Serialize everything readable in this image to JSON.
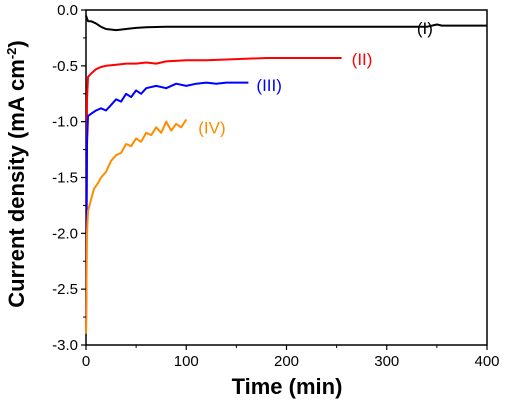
{
  "chart_data": {
    "type": "line",
    "xlabel": "Time (min)",
    "ylabel_main": "Current density (mA cm",
    "ylabel_sup": "-2",
    "ylabel_close": ")",
    "xlim": [
      0,
      400
    ],
    "ylim": [
      -3.0,
      0.0
    ],
    "x_ticks": [
      0,
      100,
      200,
      300,
      400
    ],
    "x_tick_labels": [
      "0",
      "100",
      "200",
      "300",
      "400"
    ],
    "y_ticks": [
      0.0,
      -0.5,
      -1.0,
      -1.5,
      -2.0,
      -2.5,
      -3.0
    ],
    "y_tick_labels": [
      "0.0",
      "-0.5",
      "-1.0",
      "-1.5",
      "-2.0",
      "-2.5",
      "-3.0"
    ],
    "grid": false,
    "series": [
      {
        "name": "(I)",
        "color": "#000000",
        "label_at": [
          330,
          -0.16
        ],
        "points": [
          [
            0,
            -0.05
          ],
          [
            2,
            -0.1
          ],
          [
            5,
            -0.1
          ],
          [
            10,
            -0.12
          ],
          [
            15,
            -0.15
          ],
          [
            20,
            -0.17
          ],
          [
            30,
            -0.18
          ],
          [
            40,
            -0.17
          ],
          [
            50,
            -0.16
          ],
          [
            60,
            -0.155
          ],
          [
            80,
            -0.15
          ],
          [
            100,
            -0.15
          ],
          [
            150,
            -0.15
          ],
          [
            200,
            -0.15
          ],
          [
            250,
            -0.15
          ],
          [
            300,
            -0.15
          ],
          [
            340,
            -0.15
          ],
          [
            350,
            -0.13
          ],
          [
            355,
            -0.14
          ],
          [
            370,
            -0.14
          ],
          [
            400,
            -0.14
          ]
        ]
      },
      {
        "name": "(II)",
        "color": "#ff0000",
        "label_at": [
          265,
          -0.44
        ],
        "points": [
          [
            0,
            -2.9
          ],
          [
            1,
            -0.8
          ],
          [
            2,
            -0.6
          ],
          [
            5,
            -0.57
          ],
          [
            10,
            -0.53
          ],
          [
            15,
            -0.51
          ],
          [
            20,
            -0.5
          ],
          [
            30,
            -0.49
          ],
          [
            40,
            -0.48
          ],
          [
            50,
            -0.48
          ],
          [
            60,
            -0.47
          ],
          [
            70,
            -0.48
          ],
          [
            80,
            -0.46
          ],
          [
            100,
            -0.45
          ],
          [
            120,
            -0.45
          ],
          [
            150,
            -0.44
          ],
          [
            180,
            -0.43
          ],
          [
            200,
            -0.43
          ],
          [
            220,
            -0.43
          ],
          [
            240,
            -0.43
          ],
          [
            255,
            -0.43
          ]
        ]
      },
      {
        "name": "(III)",
        "color": "#0000ff",
        "label_at": [
          170,
          -0.67
        ],
        "points": [
          [
            0,
            -2.9
          ],
          [
            1,
            -1.2
          ],
          [
            2,
            -0.95
          ],
          [
            5,
            -0.93
          ],
          [
            10,
            -0.9
          ],
          [
            15,
            -0.88
          ],
          [
            20,
            -0.9
          ],
          [
            25,
            -0.85
          ],
          [
            30,
            -0.8
          ],
          [
            35,
            -0.82
          ],
          [
            40,
            -0.75
          ],
          [
            45,
            -0.78
          ],
          [
            50,
            -0.72
          ],
          [
            55,
            -0.75
          ],
          [
            60,
            -0.7
          ],
          [
            70,
            -0.68
          ],
          [
            80,
            -0.7
          ],
          [
            90,
            -0.66
          ],
          [
            100,
            -0.68
          ],
          [
            110,
            -0.66
          ],
          [
            120,
            -0.65
          ],
          [
            130,
            -0.66
          ],
          [
            140,
            -0.65
          ],
          [
            150,
            -0.65
          ],
          [
            162,
            -0.65
          ]
        ]
      },
      {
        "name": "(IV)",
        "color": "#ff8c00",
        "label_at": [
          112,
          -1.05
        ],
        "points": [
          [
            0,
            -2.9
          ],
          [
            1,
            -2.0
          ],
          [
            2,
            -1.8
          ],
          [
            5,
            -1.7
          ],
          [
            8,
            -1.6
          ],
          [
            12,
            -1.55
          ],
          [
            15,
            -1.5
          ],
          [
            20,
            -1.45
          ],
          [
            25,
            -1.35
          ],
          [
            30,
            -1.3
          ],
          [
            35,
            -1.28
          ],
          [
            40,
            -1.2
          ],
          [
            45,
            -1.22
          ],
          [
            50,
            -1.15
          ],
          [
            55,
            -1.18
          ],
          [
            60,
            -1.1
          ],
          [
            65,
            -1.12
          ],
          [
            70,
            -1.05
          ],
          [
            75,
            -1.1
          ],
          [
            80,
            -1.0
          ],
          [
            85,
            -1.08
          ],
          [
            90,
            -1.02
          ],
          [
            95,
            -1.05
          ],
          [
            100,
            -0.98
          ]
        ]
      }
    ]
  }
}
